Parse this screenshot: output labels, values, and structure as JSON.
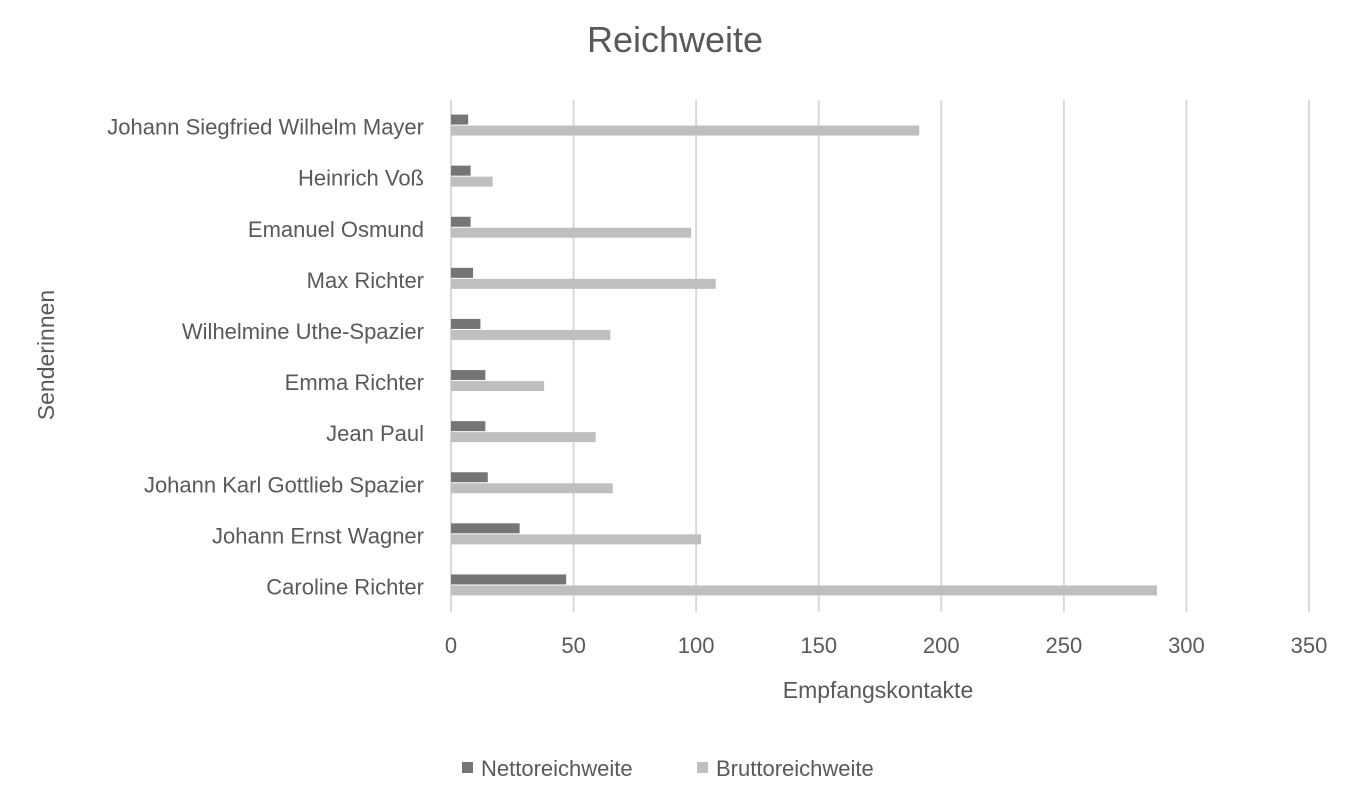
{
  "chart_data": {
    "type": "bar",
    "orientation": "horizontal",
    "title": "Reichweite",
    "xlabel": "Empfangskontakte",
    "ylabel": "Senderinnen",
    "xlim": [
      0,
      350
    ],
    "xticks": [
      0,
      50,
      100,
      150,
      200,
      250,
      300,
      350
    ],
    "grid": true,
    "legend_position": "bottom",
    "categories": [
      "Johann Siegfried Wilhelm Mayer",
      "Heinrich Voß",
      "Emanuel Osmund",
      "Max Richter",
      "Wilhelmine Uthe-Spazier",
      "Emma Richter",
      "Jean Paul",
      "Johann Karl Gottlieb Spazier",
      "Johann Ernst Wagner",
      "Caroline Richter"
    ],
    "series": [
      {
        "name": "Nettoreichweite",
        "color": "#757575",
        "values": [
          7,
          8,
          8,
          9,
          12,
          14,
          14,
          15,
          28,
          47
        ]
      },
      {
        "name": "Bruttoreichweite",
        "color": "#bfbfbf",
        "values": [
          191,
          17,
          98,
          108,
          65,
          38,
          59,
          66,
          102,
          288
        ]
      }
    ]
  }
}
